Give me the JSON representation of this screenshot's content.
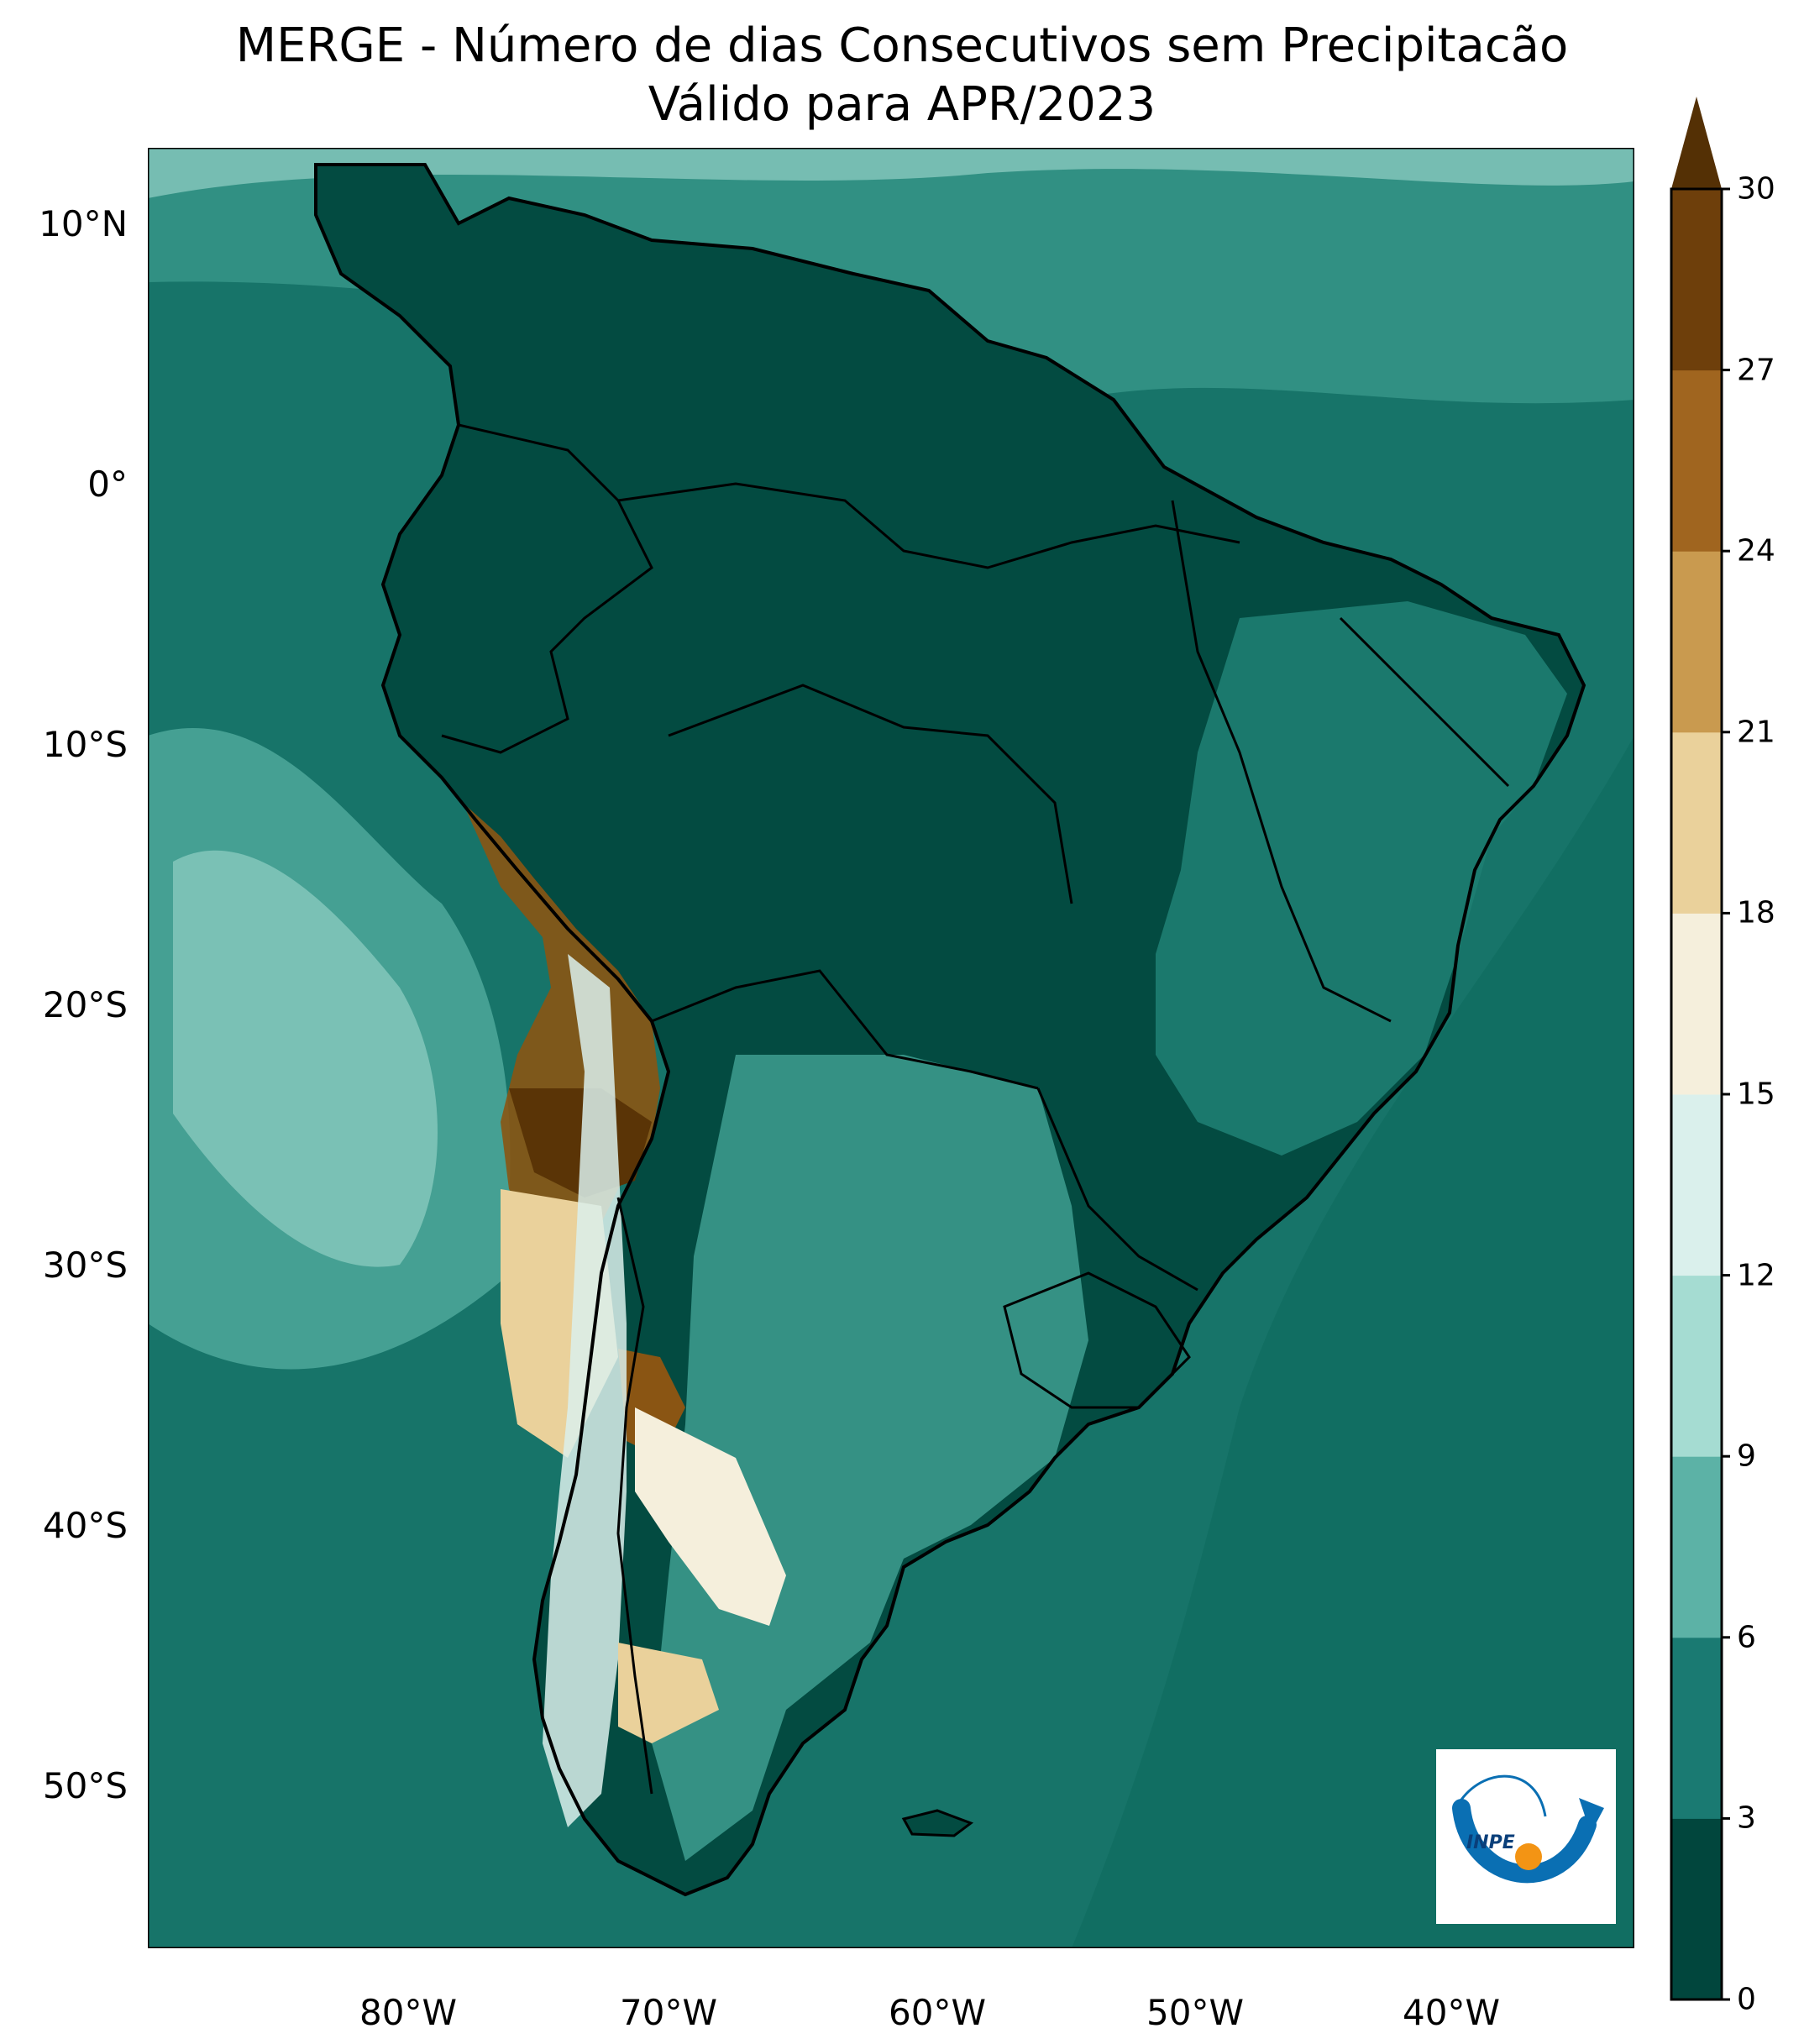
{
  "title": {
    "line1": "MERGE - Número de dias Consecutivos sem Precipitacão",
    "line2": "Válido para APR/2023"
  },
  "map": {
    "lat_ticks": [
      "10°N",
      "0°",
      "10°S",
      "20°S",
      "30°S",
      "40°S",
      "50°S"
    ],
    "lon_ticks": [
      "80°W",
      "70°W",
      "60°W",
      "50°W",
      "40°W"
    ],
    "ocean_color": "#0f6b60",
    "land_dominant_color": "#044f45"
  },
  "colorbar": {
    "ticks": [
      "0",
      "3",
      "6",
      "9",
      "12",
      "15",
      "18",
      "21",
      "24",
      "27",
      "30"
    ],
    "colors": [
      "#01463d",
      "#1a7a72",
      "#5cb2a6",
      "#a5dcd2",
      "#daf0ec",
      "#f5efdc",
      "#ead19b",
      "#c99a4f",
      "#a0651f",
      "#6e3f0b"
    ],
    "extend_color": "#543005"
  },
  "logo": {
    "text": "INPE",
    "blue": "#0a6fb3",
    "orange": "#f39414"
  }
}
